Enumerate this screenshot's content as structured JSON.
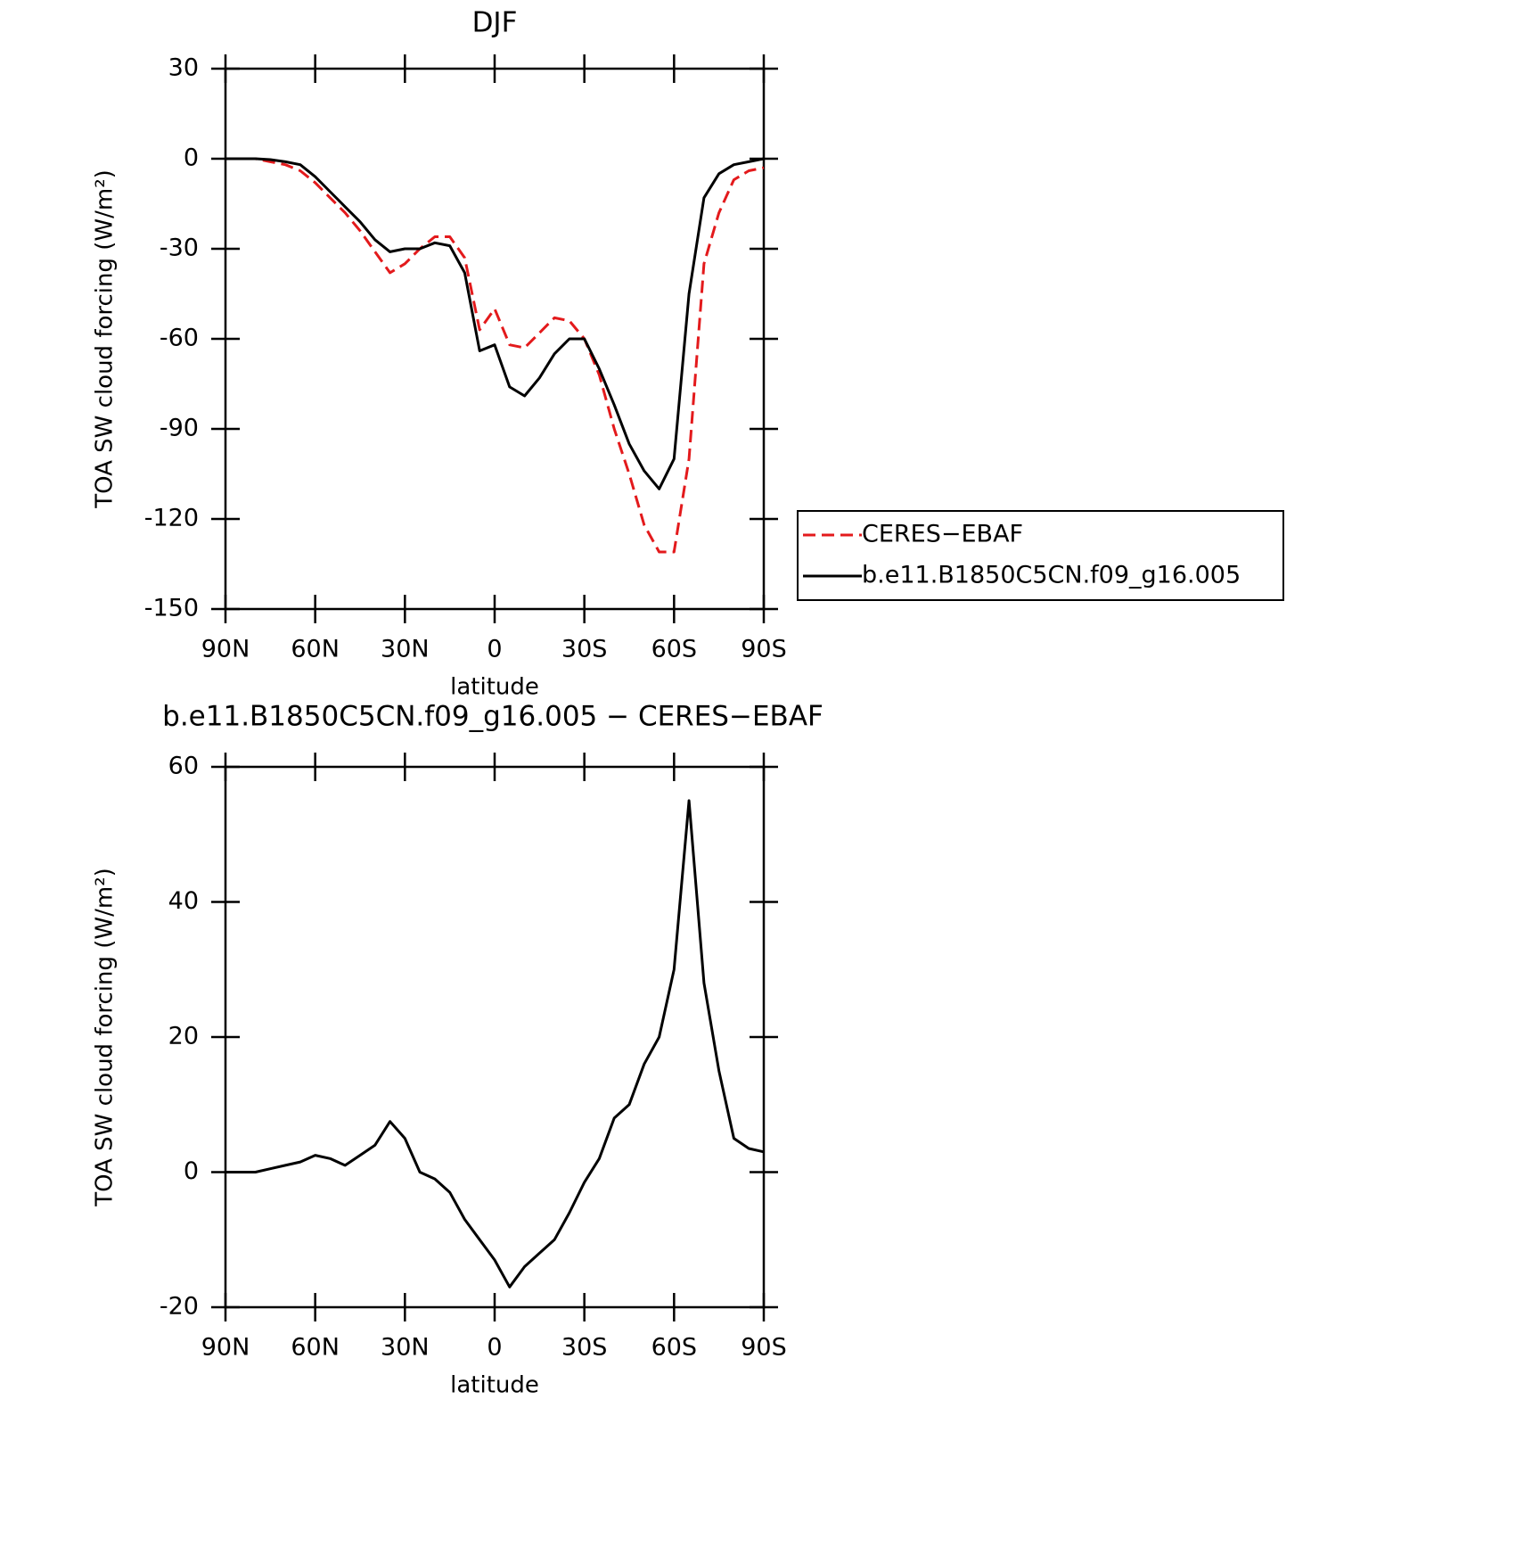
{
  "chart_data": [
    {
      "type": "line",
      "title": "DJF",
      "x_label": "latitude",
      "y_label": "TOA SW cloud forcing (W/m²)",
      "x": [
        90,
        85,
        80,
        75,
        70,
        65,
        60,
        55,
        50,
        45,
        40,
        35,
        30,
        25,
        20,
        15,
        10,
        5,
        0,
        -5,
        -10,
        -15,
        -20,
        -25,
        -30,
        -35,
        -40,
        -45,
        -50,
        -55,
        -60,
        -65,
        -70,
        -75,
        -80,
        -85,
        -90
      ],
      "xlim": [
        90,
        -90
      ],
      "xticks": [
        {
          "value": 90,
          "label": "90N"
        },
        {
          "value": 60,
          "label": "60N"
        },
        {
          "value": 30,
          "label": "30N"
        },
        0,
        {
          "value": -30,
          "label": "30S"
        },
        {
          "value": -60,
          "label": "60S"
        },
        {
          "value": -90,
          "label": "90S"
        }
      ],
      "ylim": [
        -150,
        30
      ],
      "yticks": [
        -150,
        -120,
        -90,
        -60,
        -30,
        0,
        30
      ],
      "series": [
        {
          "name": "CERES−EBAF",
          "color": "#e31a1c",
          "dash": true,
          "values": [
            0,
            0,
            0,
            -1,
            -2,
            -4,
            -8,
            -13,
            -18,
            -24,
            -31,
            -38,
            -35,
            -30,
            -26,
            -26,
            -33,
            -57,
            -50,
            -62,
            -63,
            -58,
            -53,
            -54,
            -60,
            -72,
            -90,
            -105,
            -122,
            -131,
            -131,
            -100,
            -35,
            -18,
            -7,
            -4,
            -3
          ]
        },
        {
          "name": "b.e11.B1850C5CN.f09_g16.005",
          "color": "#000000",
          "dash": false,
          "values": [
            0,
            0,
            0,
            -0.3,
            -1,
            -2,
            -6,
            -11,
            -16,
            -21,
            -27,
            -31,
            -30,
            -30,
            -28,
            -29,
            -38,
            -64,
            -62,
            -76,
            -79,
            -73,
            -65,
            -60,
            -60,
            -70,
            -82,
            -95,
            -104,
            -110,
            -100,
            -45,
            -13,
            -5,
            -2,
            -1,
            0
          ]
        }
      ]
    },
    {
      "type": "line",
      "title": "b.e11.B1850C5CN.f09_g16.005 − CERES−EBAF",
      "x_label": "latitude",
      "y_label": "TOA SW cloud forcing (W/m²)",
      "x": [
        90,
        85,
        80,
        75,
        70,
        65,
        60,
        55,
        50,
        45,
        40,
        35,
        30,
        25,
        20,
        15,
        10,
        5,
        0,
        -5,
        -10,
        -15,
        -20,
        -25,
        -30,
        -35,
        -40,
        -45,
        -50,
        -55,
        -60,
        -65,
        -70,
        -75,
        -80,
        -85,
        -90
      ],
      "xlim": [
        90,
        -90
      ],
      "xticks": [
        {
          "value": 90,
          "label": "90N"
        },
        {
          "value": 60,
          "label": "60N"
        },
        {
          "value": 30,
          "label": "30N"
        },
        0,
        {
          "value": -30,
          "label": "30S"
        },
        {
          "value": -60,
          "label": "60S"
        },
        {
          "value": -90,
          "label": "90S"
        }
      ],
      "ylim": [
        -20,
        60
      ],
      "yticks": [
        -20,
        0,
        20,
        40,
        60
      ],
      "color": "#000000",
      "values": [
        0,
        0,
        0,
        0.5,
        1,
        1.5,
        2.5,
        2,
        1,
        2.5,
        4,
        7.5,
        5,
        0,
        -1,
        -3,
        -7,
        -10,
        -13,
        -17,
        -14,
        -12,
        -10,
        -6,
        -1.5,
        2,
        8,
        10,
        16,
        20,
        30,
        55,
        28,
        15,
        5,
        3.5,
        3
      ]
    }
  ]
}
